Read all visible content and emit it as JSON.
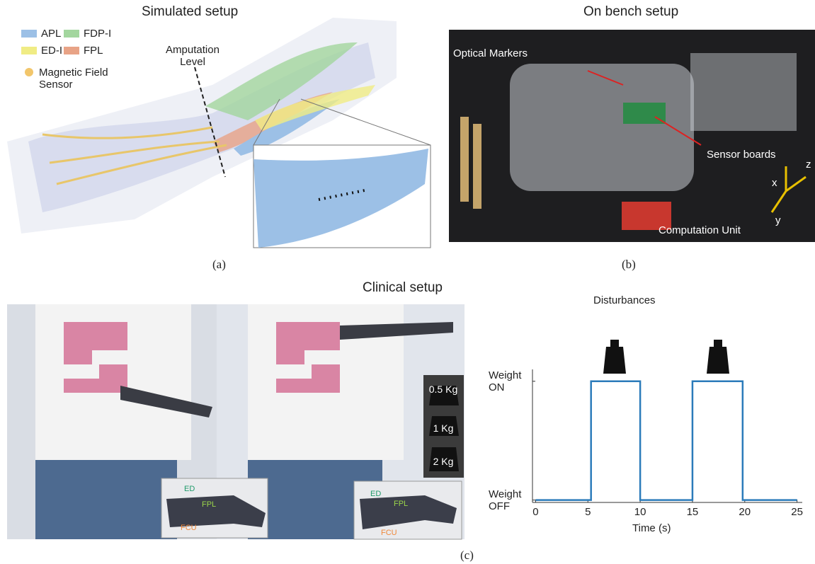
{
  "panel_a": {
    "title": "Simulated setup",
    "legend": [
      {
        "name": "APL",
        "color": "#9cc0e6"
      },
      {
        "name": "FDP-I",
        "color": "#a3d69e"
      },
      {
        "name": "ED-I",
        "color": "#f0ec84"
      },
      {
        "name": "FPL",
        "color": "#e8a386"
      },
      {
        "name": "Magnetic Field Sensor",
        "color": "#f2c66b"
      }
    ],
    "annotation": "Amputation Level",
    "caption": "(a)"
  },
  "panel_b": {
    "title": "On bench setup",
    "labels": [
      "Optical Markers",
      "Sensor boards",
      "Computation Unit"
    ],
    "axes": [
      "x",
      "y",
      "z"
    ],
    "caption": "(b)"
  },
  "panel_c": {
    "title": "Clinical setup",
    "weights": [
      "0.5 Kg",
      "1 Kg",
      "2 Kg"
    ],
    "inset_1": [
      "ED",
      "FPL",
      "FCU"
    ],
    "inset_2": [
      "ED",
      "FPL",
      "FCU"
    ],
    "caption": "(c)"
  },
  "chart_data": {
    "type": "line",
    "title": "Disturbances",
    "xlabel": "Time (s)",
    "x": [
      0,
      5.3,
      5.3,
      10,
      10,
      15,
      15,
      19.8,
      19.8,
      25
    ],
    "values": [
      0,
      0,
      1,
      1,
      0,
      0,
      1,
      1,
      0,
      0
    ],
    "color": "#2b7bba",
    "xlim": [
      -0.3,
      25.5
    ],
    "ylim": [
      -0.02,
      1.1
    ],
    "xticks": [
      0,
      5,
      10,
      15,
      20,
      25
    ],
    "yticks": [
      {
        "value": 0,
        "label": "Weight OFF"
      },
      {
        "value": 1,
        "label": "Weight ON"
      }
    ]
  }
}
